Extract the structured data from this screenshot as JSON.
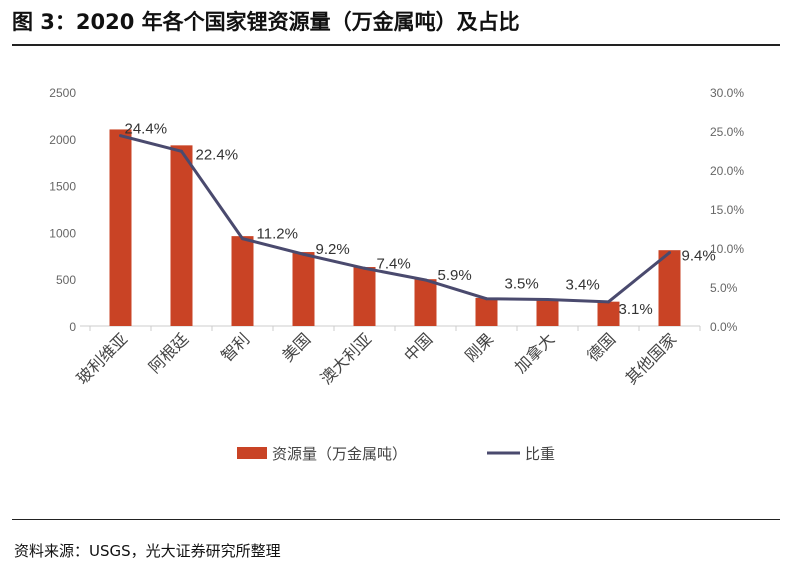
{
  "title": "图 3：2020 年各个国家锂资源量（万金属吨）及占比",
  "source": "资料来源：USGS，光大证券研究所整理",
  "chart_data": {
    "type": "bar+line",
    "categories": [
      "玻利维亚",
      "阿根廷",
      "智利",
      "美国",
      "澳大利亚",
      "中国",
      "刚果",
      "加拿大",
      "德国",
      "其他国家"
    ],
    "series": [
      {
        "name": "资源量（万金属吨）",
        "type": "bar",
        "axis": "left",
        "color": "#c94325",
        "values": [
          2100,
          1930,
          960,
          790,
          630,
          500,
          300,
          290,
          260,
          810
        ]
      },
      {
        "name": "比重",
        "type": "line",
        "axis": "right",
        "color": "#4a4a6e",
        "values": [
          24.4,
          22.4,
          11.2,
          9.2,
          7.4,
          5.9,
          3.5,
          3.4,
          3.1,
          9.4
        ],
        "labels": [
          "24.4%",
          "22.4%",
          "11.2%",
          "9.2%",
          "7.4%",
          "5.9%",
          "3.5%",
          "3.4%",
          "3.1%",
          "9.4%"
        ]
      }
    ],
    "ylim_left": [
      0,
      2500
    ],
    "yticks_left": [
      "0",
      "500",
      "1000",
      "1500",
      "2000",
      "2500"
    ],
    "ylim_right": [
      0,
      30
    ],
    "yticks_right": [
      "0.0%",
      "5.0%",
      "10.0%",
      "15.0%",
      "20.0%",
      "25.0%",
      "30.0%"
    ],
    "grid": false,
    "legend": "bottom"
  }
}
